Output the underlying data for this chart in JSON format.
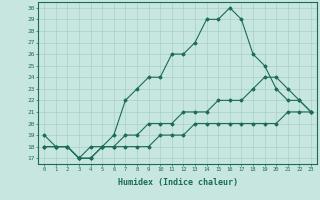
{
  "xlabel": "Humidex (Indice chaleur)",
  "ylabel": "",
  "xlim": [
    -0.5,
    23.5
  ],
  "ylim": [
    16.5,
    30.5
  ],
  "xticks": [
    0,
    1,
    2,
    3,
    4,
    5,
    6,
    7,
    8,
    9,
    10,
    11,
    12,
    13,
    14,
    15,
    16,
    17,
    18,
    19,
    20,
    21,
    22,
    23
  ],
  "yticks": [
    17,
    18,
    19,
    20,
    21,
    22,
    23,
    24,
    25,
    26,
    27,
    28,
    29,
    30
  ],
  "background_color": "#c8e6e0",
  "grid_color": "#a8cec8",
  "line_color": "#1a6b5a",
  "line1_x": [
    0,
    1,
    2,
    3,
    4,
    5,
    6,
    7,
    8,
    9,
    10,
    11,
    12,
    13,
    14,
    15,
    16,
    17,
    18,
    19,
    20,
    21,
    22,
    23
  ],
  "line1_y": [
    19,
    18,
    18,
    17,
    18,
    18,
    19,
    22,
    23,
    24,
    24,
    26,
    26,
    27,
    29,
    29,
    30,
    29,
    26,
    25,
    23,
    22,
    22,
    21
  ],
  "line2_x": [
    0,
    1,
    2,
    3,
    4,
    5,
    6,
    7,
    8,
    9,
    10,
    11,
    12,
    13,
    14,
    15,
    16,
    17,
    18,
    19,
    20,
    21,
    22,
    23
  ],
  "line2_y": [
    18,
    18,
    18,
    17,
    17,
    18,
    18,
    19,
    19,
    20,
    20,
    20,
    21,
    21,
    21,
    22,
    22,
    22,
    23,
    24,
    24,
    23,
    22,
    21
  ],
  "line3_x": [
    0,
    1,
    2,
    3,
    4,
    5,
    6,
    7,
    8,
    9,
    10,
    11,
    12,
    13,
    14,
    15,
    16,
    17,
    18,
    19,
    20,
    21,
    22,
    23
  ],
  "line3_y": [
    18,
    18,
    18,
    17,
    17,
    18,
    18,
    18,
    18,
    18,
    19,
    19,
    19,
    20,
    20,
    20,
    20,
    20,
    20,
    20,
    20,
    21,
    21,
    21
  ]
}
